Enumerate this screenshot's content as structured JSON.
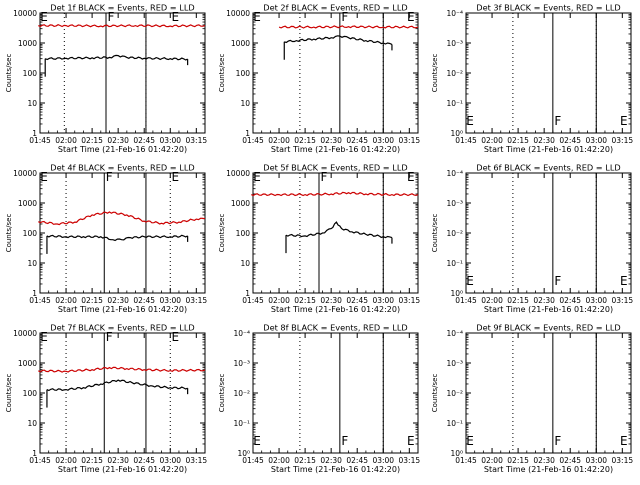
{
  "colors": {
    "events": "#000000",
    "lld": "#cc0000",
    "axis": "#000000"
  },
  "x_tick_labels": [
    "01:45",
    "02:00",
    "02:15",
    "02:30",
    "02:45",
    "03:00",
    "03:15"
  ],
  "y_tick_labels_counts": [
    "1",
    "10",
    "100",
    "1000",
    "10000"
  ],
  "y_tick_labels_small": [
    "10⁰",
    "10⁻¹",
    "10⁻²",
    "10⁻³",
    "10⁻⁴"
  ],
  "markers": {
    "e": "E",
    "f": "F"
  },
  "chart_data": [
    {
      "type": "line",
      "title": "Det 1f BLACK = Events, RED = LLD",
      "xlabel": "Start Time (21-Feb-16 01:42:20)",
      "ylabel": "Counts/sec",
      "y_scale": "log",
      "ylim": [
        1,
        10000
      ],
      "y_ticks": "counts",
      "xlim": [
        "01:45",
        "03:20"
      ],
      "x_ticks": [
        "01:45",
        "02:00",
        "02:15",
        "02:30",
        "02:45",
        "03:00",
        "03:15"
      ],
      "dotted_verticals": [
        "01:59",
        "02:46"
      ],
      "solid_verticals": [
        "02:23",
        "02:46"
      ],
      "marker_labels": [
        {
          "text": "E",
          "x": "01:44"
        },
        {
          "text": "F",
          "x": "02:23"
        },
        {
          "text": "E",
          "x": "03:00"
        }
      ],
      "series": [
        {
          "name": "RED = LLD",
          "color": "lld",
          "x": [
            "01:44",
            "02:00",
            "02:20",
            "02:40",
            "03:00",
            "03:20"
          ],
          "y": [
            3800,
            3800,
            3700,
            3800,
            3700,
            3800
          ]
        },
        {
          "name": "BLACK = Events",
          "color": "events",
          "x": [
            "01:48",
            "02:00",
            "02:15",
            "02:25",
            "02:30",
            "02:35",
            "02:45",
            "03:00",
            "03:10"
          ],
          "y": [
            300,
            310,
            320,
            330,
            380,
            330,
            310,
            300,
            290
          ]
        }
      ]
    },
    {
      "type": "line",
      "title": "Det 2f BLACK = Events, RED = LLD",
      "xlabel": "Start Time (21-Feb-16 01:42:20)",
      "ylabel": "Counts/sec",
      "y_scale": "log",
      "ylim": [
        1,
        10000
      ],
      "y_ticks": "counts",
      "xlim": [
        "01:45",
        "03:20"
      ],
      "x_ticks": [
        "01:45",
        "02:00",
        "02:15",
        "02:30",
        "02:45",
        "03:00",
        "03:15"
      ],
      "dotted_verticals": [
        "02:12",
        "03:00"
      ],
      "solid_verticals": [
        "02:35",
        "03:00"
      ],
      "marker_labels": [
        {
          "text": "E",
          "x": "01:44"
        },
        {
          "text": "F",
          "x": "02:35"
        },
        {
          "text": "E",
          "x": "03:13"
        }
      ],
      "series": [
        {
          "name": "RED = LLD",
          "color": "lld",
          "x": [
            "02:00",
            "02:20",
            "02:40",
            "03:00",
            "03:20"
          ],
          "y": [
            3400,
            3400,
            3500,
            3400,
            3400
          ]
        },
        {
          "name": "BLACK = Events",
          "color": "events",
          "x": [
            "02:03",
            "02:10",
            "02:20",
            "02:30",
            "02:35",
            "02:40",
            "02:50",
            "03:00",
            "03:05"
          ],
          "y": [
            1100,
            1200,
            1350,
            1500,
            1700,
            1500,
            1200,
            1000,
            900
          ]
        }
      ]
    },
    {
      "type": "line",
      "title": "Det 3f BLACK = Events, RED = LLD",
      "xlabel": "Start Time (21-Feb-16 01:42:20)",
      "ylabel": "Counts/sec",
      "y_scale": "log",
      "ylim": [
        0.0001,
        1
      ],
      "y_ticks": "small",
      "xlim": [
        "01:45",
        "03:20"
      ],
      "x_ticks": [
        "01:45",
        "02:00",
        "02:15",
        "02:30",
        "02:45",
        "03:00",
        "03:15"
      ],
      "dotted_verticals": [
        "02:12",
        "03:00"
      ],
      "solid_verticals": [
        "02:35",
        "03:00"
      ],
      "marker_labels": [
        {
          "text": "E",
          "x": "01:44"
        },
        {
          "text": "F",
          "x": "02:35"
        },
        {
          "text": "E",
          "x": "03:13"
        }
      ],
      "series": []
    },
    {
      "type": "line",
      "title": "Det 4f BLACK = Events, RED = LLD",
      "xlabel": "Start Time (21-Feb-16 01:42:20)",
      "ylabel": "Counts/sec",
      "y_scale": "log",
      "ylim": [
        1,
        10000
      ],
      "y_ticks": "counts",
      "xlim": [
        "01:45",
        "03:20"
      ],
      "x_ticks": [
        "01:45",
        "02:00",
        "02:15",
        "02:30",
        "02:45",
        "03:00",
        "03:15"
      ],
      "dotted_verticals": [
        "02:00",
        "03:00"
      ],
      "solid_verticals": [
        "02:22",
        "02:46"
      ],
      "marker_labels": [
        {
          "text": "E",
          "x": "01:44"
        },
        {
          "text": "F",
          "x": "02:22"
        },
        {
          "text": "E",
          "x": "03:00"
        }
      ],
      "series": [
        {
          "name": "RED = LLD",
          "color": "lld",
          "x": [
            "01:44",
            "01:55",
            "02:05",
            "02:15",
            "02:25",
            "02:35",
            "02:45",
            "02:55",
            "03:05",
            "03:15",
            "03:20"
          ],
          "y": [
            240,
            200,
            230,
            400,
            500,
            400,
            250,
            210,
            230,
            290,
            300
          ]
        },
        {
          "name": "BLACK = Events",
          "color": "events",
          "x": [
            "01:49",
            "02:00",
            "02:10",
            "02:20",
            "02:27",
            "02:32",
            "02:37",
            "02:45",
            "03:00",
            "03:10"
          ],
          "y": [
            80,
            75,
            75,
            75,
            60,
            60,
            70,
            75,
            75,
            80
          ]
        }
      ]
    },
    {
      "type": "line",
      "title": "Det 5f BLACK = Events, RED = LLD",
      "xlabel": "Start Time (21-Feb-16 01:42:20)",
      "ylabel": "Counts/sec",
      "y_scale": "log",
      "ylim": [
        1,
        10000
      ],
      "y_ticks": "counts",
      "xlim": [
        "01:45",
        "03:20"
      ],
      "x_ticks": [
        "01:45",
        "02:00",
        "02:15",
        "02:30",
        "02:45",
        "03:00",
        "03:15"
      ],
      "dotted_verticals": [
        "02:12",
        "03:00"
      ],
      "solid_verticals": [
        "02:23",
        "03:00"
      ],
      "marker_labels": [
        {
          "text": "E",
          "x": "01:44"
        },
        {
          "text": "F",
          "x": "02:23"
        },
        {
          "text": "E",
          "x": "03:13"
        }
      ],
      "series": [
        {
          "name": "RED = LLD",
          "color": "lld",
          "x": [
            "01:44",
            "02:00",
            "02:15",
            "02:30",
            "02:40",
            "02:50",
            "03:05",
            "03:20"
          ],
          "y": [
            1900,
            1900,
            1900,
            2000,
            2200,
            2000,
            1900,
            1900
          ]
        },
        {
          "name": "BLACK = Events",
          "color": "events",
          "x": [
            "02:04",
            "02:15",
            "02:25",
            "02:30",
            "02:33",
            "02:36",
            "02:42",
            "02:50",
            "03:00",
            "03:05"
          ],
          "y": [
            85,
            80,
            100,
            140,
            230,
            140,
            110,
            90,
            75,
            70
          ]
        }
      ]
    },
    {
      "type": "line",
      "title": "Det 6f BLACK = Events, RED = LLD",
      "xlabel": "Start Time (21-Feb-16 01:42:20)",
      "ylabel": "Counts/sec",
      "y_scale": "log",
      "ylim": [
        0.0001,
        1
      ],
      "y_ticks": "small",
      "xlim": [
        "01:45",
        "03:20"
      ],
      "x_ticks": [
        "01:45",
        "02:00",
        "02:15",
        "02:30",
        "02:45",
        "03:00",
        "03:15"
      ],
      "dotted_verticals": [
        "02:12",
        "03:00"
      ],
      "solid_verticals": [
        "02:35",
        "03:00"
      ],
      "marker_labels": [
        {
          "text": "E",
          "x": "01:44"
        },
        {
          "text": "F",
          "x": "02:35"
        },
        {
          "text": "E",
          "x": "03:13"
        }
      ],
      "series": []
    },
    {
      "type": "line",
      "title": "Det 7f BLACK = Events, RED = LLD",
      "xlabel": "Start Time (21-Feb-16 01:42:20)",
      "ylabel": "Counts/sec",
      "y_scale": "log",
      "ylim": [
        1,
        10000
      ],
      "y_ticks": "counts",
      "xlim": [
        "01:45",
        "03:20"
      ],
      "x_ticks": [
        "01:45",
        "02:00",
        "02:15",
        "02:30",
        "02:45",
        "03:00",
        "03:15"
      ],
      "dotted_verticals": [
        "02:00",
        "03:00"
      ],
      "solid_verticals": [
        "02:22",
        "02:46"
      ],
      "marker_labels": [
        {
          "text": "E",
          "x": "01:44"
        },
        {
          "text": "F",
          "x": "02:22"
        },
        {
          "text": "E",
          "x": "03:00"
        }
      ],
      "series": [
        {
          "name": "RED = LLD",
          "color": "lld",
          "x": [
            "01:44",
            "02:00",
            "02:15",
            "02:25",
            "02:35",
            "02:45",
            "03:00",
            "03:20"
          ],
          "y": [
            550,
            530,
            600,
            700,
            650,
            600,
            560,
            580
          ]
        },
        {
          "name": "BLACK = Events",
          "color": "events",
          "x": [
            "01:49",
            "02:00",
            "02:10",
            "02:20",
            "02:30",
            "02:38",
            "02:50",
            "03:00",
            "03:10"
          ],
          "y": [
            130,
            130,
            150,
            200,
            270,
            220,
            170,
            150,
            145
          ]
        }
      ]
    },
    {
      "type": "line",
      "title": "Det 8f BLACK = Events, RED = LLD",
      "xlabel": "Start Time (21-Feb-16 01:42:20)",
      "ylabel": "Counts/sec",
      "y_scale": "log",
      "ylim": [
        0.0001,
        1
      ],
      "y_ticks": "small",
      "xlim": [
        "01:45",
        "03:20"
      ],
      "x_ticks": [
        "01:45",
        "02:00",
        "02:15",
        "02:30",
        "02:45",
        "03:00",
        "03:15"
      ],
      "dotted_verticals": [
        "02:12",
        "03:00"
      ],
      "solid_verticals": [
        "02:35",
        "03:00"
      ],
      "marker_labels": [
        {
          "text": "E",
          "x": "01:44"
        },
        {
          "text": "F",
          "x": "02:35"
        },
        {
          "text": "E",
          "x": "03:13"
        }
      ],
      "series": []
    },
    {
      "type": "line",
      "title": "Det 9f BLACK = Events, RED = LLD",
      "xlabel": "Start Time (21-Feb-16 01:42:20)",
      "ylabel": "Counts/sec",
      "y_scale": "log",
      "ylim": [
        0.0001,
        1
      ],
      "y_ticks": "small",
      "xlim": [
        "01:45",
        "03:20"
      ],
      "x_ticks": [
        "01:45",
        "02:00",
        "02:15",
        "02:30",
        "02:45",
        "03:00",
        "03:15"
      ],
      "dotted_verticals": [
        "02:12",
        "03:00"
      ],
      "solid_verticals": [
        "02:35",
        "03:00"
      ],
      "marker_labels": [
        {
          "text": "E",
          "x": "01:44"
        },
        {
          "text": "F",
          "x": "02:35"
        },
        {
          "text": "E",
          "x": "03:13"
        }
      ],
      "series": []
    }
  ]
}
